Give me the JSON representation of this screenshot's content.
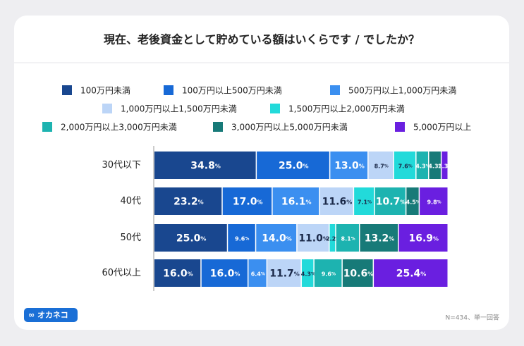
{
  "chart_data": {
    "type": "stacked-bar-horizontal",
    "title": "現在、老後資金として貯めている額はいくらです / でしたか？",
    "categories": [
      "30代以下",
      "40代",
      "50代",
      "60代以上"
    ],
    "series": [
      {
        "name": "100万円未満",
        "color": "#19478f",
        "values": [
          34.8,
          23.2,
          25.0,
          16.0
        ],
        "value_labels": [
          "34.8%",
          "23.2%",
          "25.0%",
          "16.0%"
        ]
      },
      {
        "name": "100万円以上500万円未満",
        "color": "#1769d6",
        "values": [
          25.0,
          17.0,
          9.6,
          16.0
        ],
        "value_labels": [
          "25.0%",
          "17.0%",
          "9.6%",
          "16.0%"
        ]
      },
      {
        "name": "500万円以上1,000万円未満",
        "color": "#3b8ff0",
        "values": [
          13.0,
          16.1,
          14.0,
          6.4
        ],
        "value_labels": [
          "13.0%",
          "16.1%",
          "14.0%",
          "6.4%"
        ]
      },
      {
        "name": "1,000万円以上1,500万円未満",
        "color": "#bcd5f7",
        "values": [
          8.7,
          11.6,
          11.0,
          11.7
        ],
        "value_labels": [
          "8.7%",
          "11.6%",
          "11.0%",
          "11.7%"
        ]
      },
      {
        "name": "1,500万円以上2,000万円未満",
        "color": "#22dada",
        "values": [
          7.6,
          7.1,
          2.2,
          4.3
        ],
        "value_labels": [
          "7.6%",
          "7.1%",
          "2.2%",
          "4.3%"
        ]
      },
      {
        "name": "2,000万円以上3,000万円未満",
        "color": "#1db3b0",
        "values": [
          4.3,
          10.7,
          8.1,
          9.6
        ],
        "value_labels": [
          "4.3%",
          "10.7%",
          "8.1%",
          "9.6%"
        ]
      },
      {
        "name": "3,000万円以上5,000万円未満",
        "color": "#177a78",
        "values": [
          4.3,
          4.5,
          13.2,
          10.6
        ],
        "value_labels": [
          "4.3%",
          "4.5%",
          "13.2%",
          "10.6%"
        ]
      },
      {
        "name": "5,000万円以上",
        "color": "#6a1fe0",
        "values": [
          2.3,
          9.8,
          16.9,
          25.4
        ],
        "value_labels": [
          "2.3%",
          "9.8%",
          "16.9%",
          "25.4%"
        ]
      }
    ],
    "xlim": [
      0,
      100
    ],
    "note": "N=434、単一回答",
    "logo": "∞ オカネコ"
  }
}
